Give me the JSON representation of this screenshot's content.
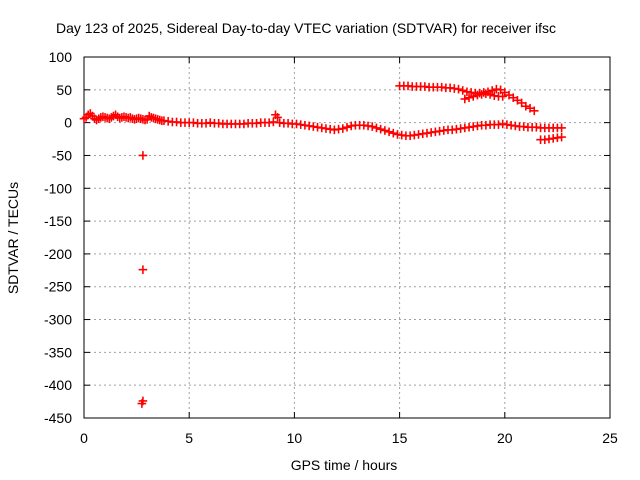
{
  "chart_data": {
    "type": "scatter",
    "title": "Day 123 of 2025, Sidereal Day-to-day VTEC variation (SDTVAR) for receiver ifsc",
    "xlabel": "GPS time / hours",
    "ylabel": "SDTVAR / TECUs",
    "xlim": [
      0,
      25
    ],
    "ylim": [
      -450,
      100
    ],
    "xticks": [
      "0",
      "5",
      "10",
      "15",
      "20",
      "25"
    ],
    "yticks": [
      "100",
      "50",
      "0",
      "-50",
      "-100",
      "-150",
      "-200",
      "-250",
      "-300",
      "-350",
      "-400",
      "-450"
    ],
    "grid": true,
    "marker": "plus",
    "color": "#ff0000",
    "series": [
      {
        "points": [
          [
            0.0,
            6
          ],
          [
            0.1,
            8
          ],
          [
            0.2,
            12
          ],
          [
            0.3,
            14
          ],
          [
            0.4,
            10
          ],
          [
            0.5,
            6
          ],
          [
            0.6,
            4
          ],
          [
            0.7,
            6
          ],
          [
            0.8,
            8
          ],
          [
            0.9,
            9
          ],
          [
            1.0,
            8
          ],
          [
            1.1,
            7
          ],
          [
            1.2,
            6
          ],
          [
            1.3,
            8
          ],
          [
            1.4,
            10
          ],
          [
            1.5,
            12
          ],
          [
            1.6,
            9
          ],
          [
            1.7,
            7
          ],
          [
            1.8,
            8
          ],
          [
            1.9,
            9
          ],
          [
            2.0,
            8
          ],
          [
            2.1,
            7
          ],
          [
            2.2,
            8
          ],
          [
            2.3,
            6
          ],
          [
            2.4,
            5
          ],
          [
            2.5,
            6
          ],
          [
            2.6,
            7
          ],
          [
            2.7,
            6
          ],
          [
            2.8,
            5
          ],
          [
            2.9,
            4
          ],
          [
            3.0,
            5
          ],
          [
            3.1,
            10
          ],
          [
            3.2,
            8
          ],
          [
            3.3,
            7
          ],
          [
            3.4,
            6
          ],
          [
            3.5,
            5
          ],
          [
            3.6,
            4
          ],
          [
            3.7,
            3
          ],
          [
            3.8,
            3
          ],
          [
            4.0,
            2
          ],
          [
            4.2,
            1
          ],
          [
            4.4,
            1
          ],
          [
            4.6,
            0
          ],
          [
            4.8,
            0
          ],
          [
            5.0,
            0
          ],
          [
            5.2,
            0
          ],
          [
            5.4,
            -1
          ],
          [
            5.6,
            -1
          ],
          [
            5.8,
            -1
          ],
          [
            6.0,
            0
          ],
          [
            6.2,
            -1
          ],
          [
            6.4,
            -1
          ],
          [
            6.6,
            -2
          ],
          [
            6.8,
            -2
          ],
          [
            7.0,
            -2
          ],
          [
            7.2,
            -2
          ],
          [
            7.4,
            -2
          ],
          [
            7.6,
            -2
          ],
          [
            7.8,
            -1
          ],
          [
            8.0,
            -1
          ],
          [
            8.2,
            -1
          ],
          [
            8.4,
            0
          ],
          [
            8.6,
            0
          ],
          [
            8.8,
            0
          ],
          [
            9.0,
            1
          ],
          [
            9.1,
            12
          ],
          [
            9.2,
            8
          ],
          [
            9.3,
            0
          ],
          [
            9.5,
            -1
          ],
          [
            9.7,
            -1
          ],
          [
            9.9,
            -2
          ],
          [
            10.1,
            -2
          ],
          [
            10.3,
            -3
          ],
          [
            10.5,
            -4
          ],
          [
            10.7,
            -5
          ],
          [
            10.9,
            -6
          ],
          [
            11.1,
            -7
          ],
          [
            11.3,
            -8
          ],
          [
            11.5,
            -9
          ],
          [
            11.7,
            -10
          ],
          [
            11.9,
            -11
          ],
          [
            12.1,
            -10
          ],
          [
            12.3,
            -9
          ],
          [
            12.5,
            -7
          ],
          [
            12.7,
            -5
          ],
          [
            12.9,
            -4
          ],
          [
            13.1,
            -4
          ],
          [
            13.3,
            -4
          ],
          [
            13.5,
            -5
          ],
          [
            13.7,
            -6
          ],
          [
            13.9,
            -8
          ],
          [
            14.1,
            -10
          ],
          [
            14.3,
            -12
          ],
          [
            14.5,
            -14
          ],
          [
            14.7,
            -16
          ],
          [
            14.9,
            -18
          ],
          [
            15.1,
            -19
          ],
          [
            15.3,
            -20
          ],
          [
            15.5,
            -20
          ],
          [
            15.7,
            -19
          ],
          [
            15.9,
            -18
          ],
          [
            16.1,
            -17
          ],
          [
            16.3,
            -16
          ],
          [
            16.5,
            -15
          ],
          [
            16.7,
            -14
          ],
          [
            16.9,
            -13
          ],
          [
            17.1,
            -12
          ],
          [
            17.3,
            -11
          ],
          [
            17.5,
            -11
          ],
          [
            17.7,
            -10
          ],
          [
            17.9,
            -9
          ],
          [
            18.1,
            -8
          ],
          [
            18.3,
            -7
          ],
          [
            18.5,
            -6
          ],
          [
            18.7,
            -5
          ],
          [
            18.9,
            -4
          ],
          [
            19.1,
            -4
          ],
          [
            19.3,
            -3
          ],
          [
            19.5,
            -3
          ],
          [
            19.7,
            -3
          ],
          [
            19.9,
            -2
          ],
          [
            20.1,
            -3
          ],
          [
            20.3,
            -4
          ],
          [
            20.5,
            -5
          ],
          [
            20.7,
            -6
          ],
          [
            20.9,
            -6
          ],
          [
            21.1,
            -7
          ],
          [
            21.3,
            -7
          ],
          [
            21.5,
            -7
          ],
          [
            21.7,
            -8
          ],
          [
            21.9,
            -8
          ],
          [
            22.1,
            -8
          ],
          [
            22.3,
            -8
          ],
          [
            22.5,
            -8
          ],
          [
            22.7,
            -8
          ],
          [
            21.7,
            -26
          ],
          [
            21.9,
            -26
          ],
          [
            22.1,
            -25
          ],
          [
            22.3,
            -24
          ],
          [
            22.5,
            -23
          ],
          [
            22.7,
            -22
          ],
          [
            15.0,
            56
          ],
          [
            15.2,
            56
          ],
          [
            15.4,
            56
          ],
          [
            15.6,
            55
          ],
          [
            15.8,
            55
          ],
          [
            16.0,
            55
          ],
          [
            16.2,
            55
          ],
          [
            16.4,
            54
          ],
          [
            16.6,
            54
          ],
          [
            16.8,
            54
          ],
          [
            17.0,
            54
          ],
          [
            17.2,
            53
          ],
          [
            17.4,
            53
          ],
          [
            17.6,
            52
          ],
          [
            17.8,
            51
          ],
          [
            18.0,
            49
          ],
          [
            18.2,
            47
          ],
          [
            18.4,
            46
          ],
          [
            18.6,
            45
          ],
          [
            18.8,
            45
          ],
          [
            19.0,
            46
          ],
          [
            19.2,
            47
          ],
          [
            19.4,
            49
          ],
          [
            19.6,
            51
          ],
          [
            19.8,
            50
          ],
          [
            20.0,
            46
          ],
          [
            20.2,
            42
          ],
          [
            20.4,
            38
          ],
          [
            20.6,
            34
          ],
          [
            20.8,
            30
          ],
          [
            21.0,
            25
          ],
          [
            21.2,
            22
          ],
          [
            21.4,
            18
          ],
          [
            18.1,
            36
          ],
          [
            18.3,
            38
          ],
          [
            18.5,
            40
          ],
          [
            18.7,
            42
          ],
          [
            18.9,
            43
          ],
          [
            19.1,
            44
          ],
          [
            19.3,
            43
          ],
          [
            19.5,
            41
          ],
          [
            19.7,
            40
          ],
          [
            19.9,
            40
          ],
          [
            2.8,
            -50
          ],
          [
            2.8,
            -224
          ],
          [
            2.8,
            -424
          ],
          [
            2.75,
            -428
          ]
        ]
      }
    ]
  }
}
